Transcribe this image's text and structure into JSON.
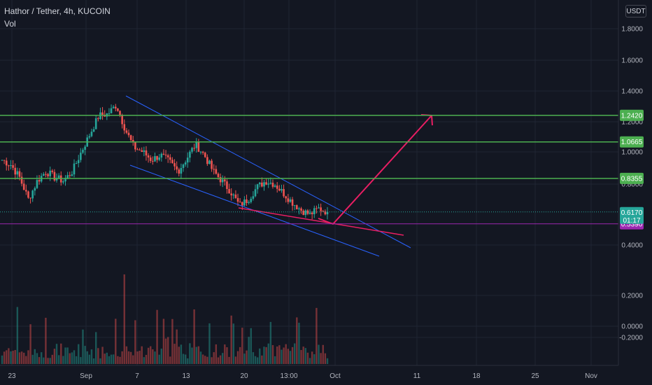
{
  "header": {
    "symbol_line": "Hathor / Tether, 4h, KUCOIN",
    "vol_label": "Vol"
  },
  "currency_button": "USDT",
  "colors": {
    "background": "#131722",
    "grid": "#1f2433",
    "up": "#26a69a",
    "down": "#ef5350",
    "level": "#4caf50",
    "channel": "#2962ff",
    "arrow": "#e91e63",
    "purple": "#9c27b0"
  },
  "chart_data": {
    "type": "candlestick",
    "y_ticks": [
      "1.8000",
      "1.6000",
      "1.4000",
      "1.2000",
      "1.0000",
      "0.8000",
      "0.4000",
      "0.2000",
      "0.0000",
      "-0.2000"
    ],
    "x_ticks": [
      "23",
      "Sep",
      "7",
      "13",
      "20",
      "13:00",
      "Oct",
      "11",
      "18",
      "25",
      "Nov"
    ],
    "ylim": [
      -0.2,
      1.8
    ],
    "grid": true,
    "horizontal_levels": [
      {
        "label": "1.2420",
        "value": 1.242,
        "color": "#4caf50"
      },
      {
        "label": "1.0665",
        "value": 1.0665,
        "color": "#4caf50"
      },
      {
        "label": "0.8355",
        "value": 0.8355,
        "color": "#4caf50"
      },
      {
        "label": "0.5390",
        "value": 0.539,
        "color": "#9c27b0"
      }
    ],
    "last_price": {
      "label": "0.6170",
      "value": 0.617,
      "countdown": "01:17"
    },
    "annotations": [
      "descending channel",
      "support trendline",
      "breakout arrow to 1.2420"
    ],
    "series_anchors": [
      [
        0.95,
        0.95
      ],
      [
        0.9,
        0.92
      ],
      [
        0.82,
        0.84
      ],
      [
        0.72,
        0.7
      ],
      [
        0.8,
        0.82
      ],
      [
        0.86,
        0.88
      ],
      [
        0.83,
        0.84
      ],
      [
        0.8,
        0.82
      ],
      [
        0.87,
        0.88
      ],
      [
        1.0,
        1.0
      ],
      [
        1.12,
        1.12
      ],
      [
        1.25,
        1.24
      ],
      [
        1.26,
        1.25
      ],
      [
        1.31,
        1.31
      ],
      [
        1.15,
        1.15
      ],
      [
        1.04,
        1.03
      ],
      [
        1.0,
        1.0
      ],
      [
        0.96,
        0.95
      ],
      [
        0.98,
        0.98
      ],
      [
        0.94,
        0.94
      ],
      [
        0.88,
        0.88
      ],
      [
        0.96,
        0.96
      ],
      [
        1.05,
        1.05
      ],
      [
        0.98,
        0.98
      ],
      [
        0.88,
        0.88
      ],
      [
        0.82,
        0.82
      ],
      [
        0.75,
        0.75
      ],
      [
        0.66,
        0.66
      ],
      [
        0.7,
        0.7
      ],
      [
        0.78,
        0.78
      ],
      [
        0.82,
        0.82
      ],
      [
        0.8,
        0.8
      ],
      [
        0.74,
        0.74
      ],
      [
        0.68,
        0.68
      ],
      [
        0.63,
        0.63
      ],
      [
        0.59,
        0.6
      ],
      [
        0.64,
        0.64
      ],
      [
        0.62,
        0.617
      ]
    ]
  }
}
